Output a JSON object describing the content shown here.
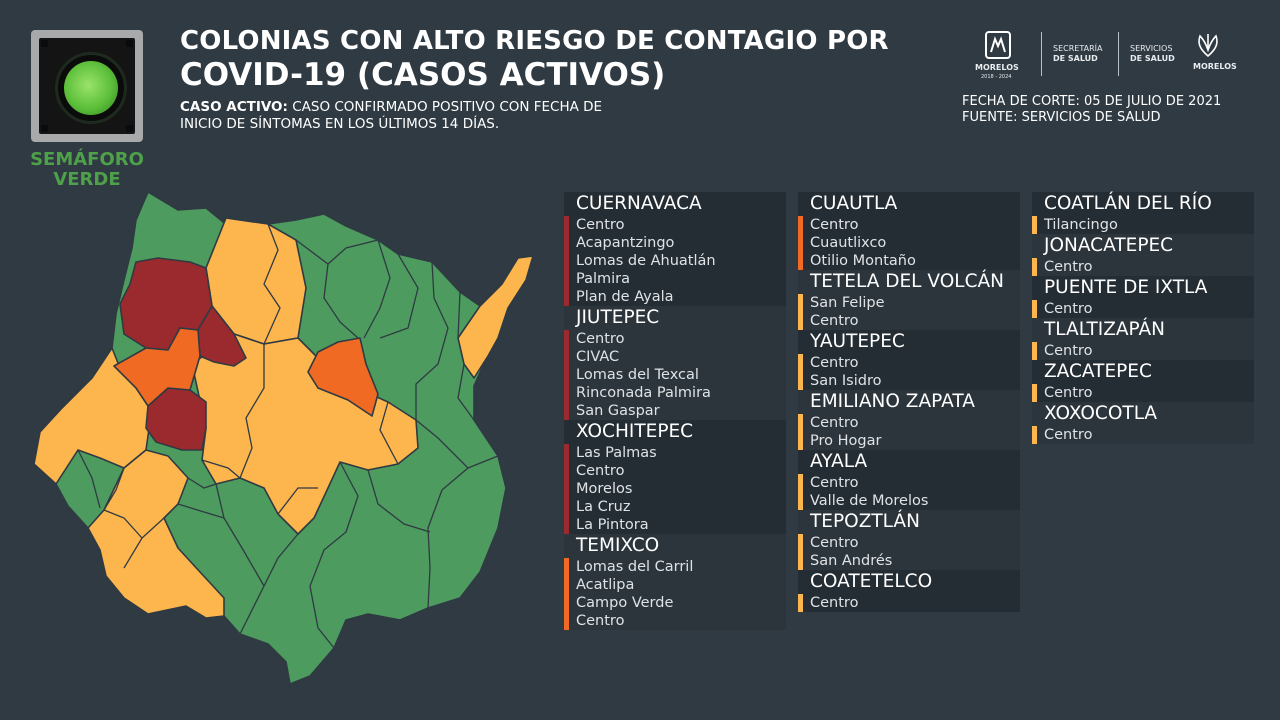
{
  "semaforo_label": [
    "SEMÁFORO",
    "VERDE"
  ],
  "title_line1": "COLONIAS CON ALTO RIESGO DE CONTAGIO POR",
  "title_line2": "COVID-19 (CASOS ACTIVOS)",
  "definition": {
    "term": "CASO ACTIVO:",
    "text": "CASO CONFIRMADO POSITIVO CON FECHA DE",
    "text2": "INICIO DE SÍNTOMAS EN LOS ÚLTIMOS 14 DÍAS."
  },
  "logos": {
    "morelos_label": "MORELOS",
    "morelos_years": "2018 - 2024",
    "secretaria": [
      "SECRETARÍA",
      "DE SALUD"
    ],
    "servicios": [
      "SERVICIOS",
      "DE SALUD"
    ],
    "morelos2": "MORELOS"
  },
  "fecha_corte": "FECHA DE CORTE: 05 DE JULIO DE 2021",
  "fuente": "FUENTE: SERVICIOS DE SALUD",
  "colors": {
    "background": "#2f3a42",
    "green": "#4d9b5f",
    "yellow": "#fdb54e",
    "orange": "#f06a24",
    "red": "#9b2a2e"
  },
  "columns": [
    [
      {
        "municipio": "CUERNAVACA",
        "color": "#9b2a2e",
        "colonias": [
          "Centro",
          "Acapantzingo",
          "Lomas de Ahuatlán",
          "Palmira",
          "Plan de Ayala"
        ]
      },
      {
        "municipio": "JIUTEPEC",
        "color": "#9b2a2e",
        "colonias": [
          "Centro",
          "CIVAC",
          "Lomas del Texcal",
          "Rinconada Palmira",
          "San Gaspar"
        ]
      },
      {
        "municipio": "XOCHITEPEC",
        "color": "#9b2a2e",
        "colonias": [
          "Las Palmas",
          "Centro",
          "Morelos",
          "La Cruz",
          "La Pintora"
        ]
      },
      {
        "municipio": "TEMIXCO",
        "color": "#f06a24",
        "colonias": [
          "Lomas del Carril",
          "Acatlipa",
          "Campo Verde",
          "Centro"
        ]
      }
    ],
    [
      {
        "municipio": "CUAUTLA",
        "color": "#f06a24",
        "colonias": [
          "Centro",
          "Cuautlixco",
          "Otilio Montaño"
        ]
      },
      {
        "municipio": "TETELA DEL VOLCÁN",
        "color": "#fdb54e",
        "colonias": [
          "San Felipe",
          "Centro"
        ]
      },
      {
        "municipio": "YAUTEPEC",
        "color": "#fdb54e",
        "colonias": [
          "Centro",
          "San Isidro"
        ]
      },
      {
        "municipio": "EMILIANO ZAPATA",
        "color": "#fdb54e",
        "colonias": [
          "Centro",
          "Pro Hogar"
        ]
      },
      {
        "municipio": "AYALA",
        "color": "#fdb54e",
        "colonias": [
          "Centro",
          "Valle de Morelos"
        ]
      },
      {
        "municipio": "TEPOZTLÁN",
        "color": "#fdb54e",
        "colonias": [
          "Centro",
          "San Andrés"
        ]
      },
      {
        "municipio": "COATETELCO",
        "color": "#fdb54e",
        "colonias": [
          "Centro"
        ]
      }
    ],
    [
      {
        "municipio": "COATLÁN DEL RÍO",
        "color": "#fdb54e",
        "colonias": [
          "Tilancingo"
        ]
      },
      {
        "municipio": "JONACATEPEC",
        "color": "#fdb54e",
        "colonias": [
          "Centro"
        ]
      },
      {
        "municipio": "PUENTE DE IXTLA",
        "color": "#fdb54e",
        "colonias": [
          "Centro"
        ]
      },
      {
        "municipio": "TLALTIZAPÁN",
        "color": "#fdb54e",
        "colonias": [
          "Centro"
        ]
      },
      {
        "municipio": "ZACATEPEC",
        "color": "#fdb54e",
        "colonias": [
          "Centro"
        ]
      },
      {
        "municipio": "XOXOCOTLA",
        "color": "#fdb54e",
        "colonias": [
          "Centro"
        ]
      }
    ]
  ]
}
